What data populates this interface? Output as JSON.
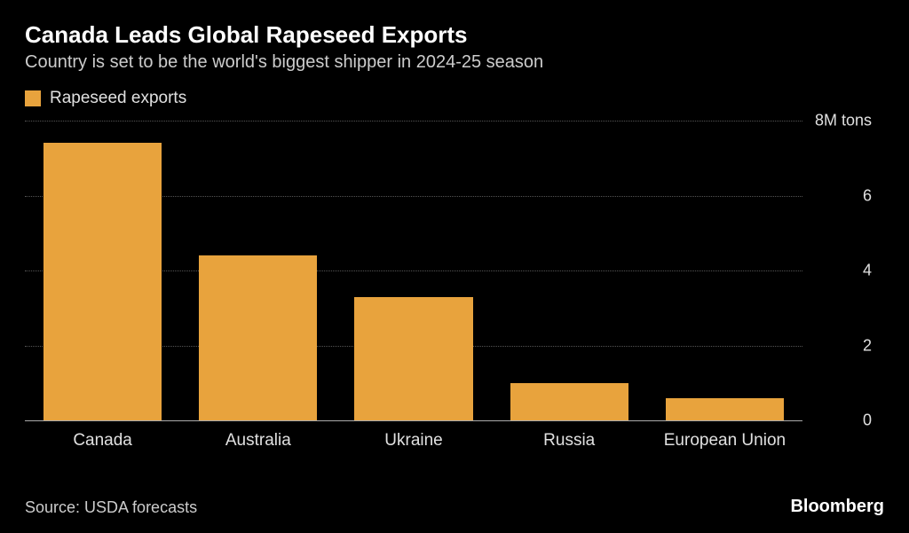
{
  "chart": {
    "type": "bar",
    "title": "Canada Leads Global Rapeseed Exports",
    "subtitle": "Country is set to be the world's biggest shipper in 2024-25 season",
    "legend": {
      "label": "Rapeseed exports",
      "swatch_color": "#e8a33d"
    },
    "categories": [
      "Canada",
      "Australia",
      "Ukraine",
      "Russia",
      "European Union"
    ],
    "values": [
      7.4,
      4.4,
      3.3,
      1.0,
      0.6
    ],
    "bar_color": "#e8a33d",
    "background_color": "#000000",
    "grid_color": "#555555",
    "baseline_color": "#aaaaaa",
    "text_color": "#e0e0e0",
    "ylim": [
      0,
      8
    ],
    "yticks": [
      0,
      2,
      4,
      6,
      8
    ],
    "ytick_labels": [
      "0",
      "2",
      "4",
      "6",
      "8M tons"
    ],
    "title_fontsize": 26,
    "subtitle_fontsize": 20,
    "label_fontsize": 19,
    "tick_fontsize": 18,
    "bar_width_ratio": 0.76
  },
  "footer": {
    "source": "Source: USDA forecasts",
    "brand": "Bloomberg"
  }
}
